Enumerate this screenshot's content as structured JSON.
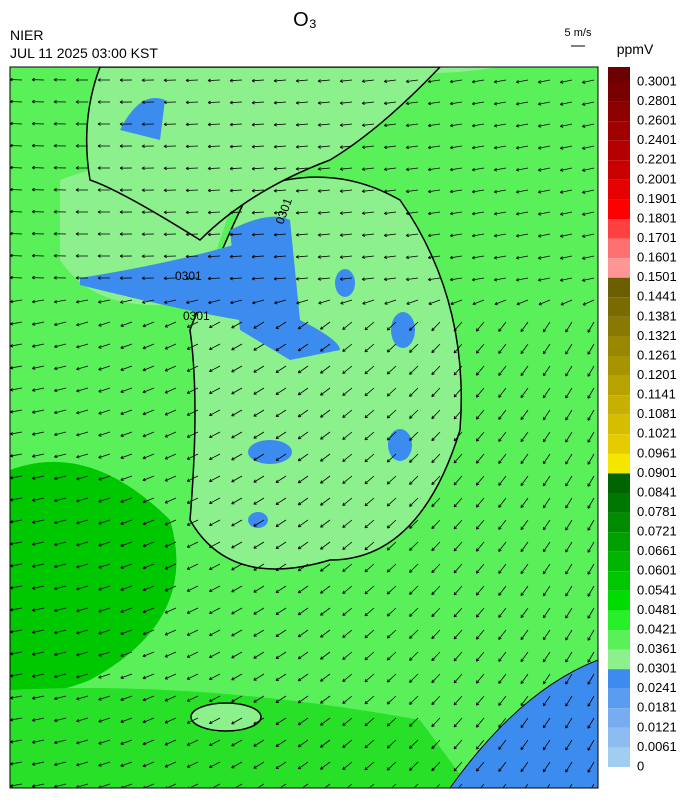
{
  "header": {
    "title": "O₃",
    "agency": "NIER",
    "datetime": "JUL 11 2025 03:00 KST",
    "wind_scale": "5 m/s"
  },
  "colorbar": {
    "unit": "ppmV",
    "labels": [
      0.3001,
      0.2801,
      0.2601,
      0.2401,
      0.2201,
      0.2001,
      0.1901,
      0.1801,
      0.1701,
      0.1601,
      0.1501,
      0.1441,
      0.1381,
      0.1321,
      0.1261,
      0.1201,
      0.1141,
      0.1081,
      0.1021,
      0.0961,
      0.0901,
      0.0841,
      0.0781,
      0.0721,
      0.0661,
      0.0601,
      0.0541,
      0.0481,
      0.0421,
      0.0361,
      0.0301,
      0.0241,
      0.0181,
      0.0121,
      0.0061,
      0
    ],
    "colors": [
      "#6b0000",
      "#780000",
      "#8c0000",
      "#a00000",
      "#b40000",
      "#c80000",
      "#e60000",
      "#ff0000",
      "#ff4040",
      "#ff7070",
      "#ff9696",
      "#6b5e00",
      "#7a6b00",
      "#897900",
      "#998700",
      "#a89400",
      "#b8a200",
      "#c7b000",
      "#d6bd00",
      "#e6cb00",
      "#f5e600",
      "#006400",
      "#007800",
      "#008c00",
      "#00a000",
      "#00b400",
      "#00c800",
      "#00dc00",
      "#28f028",
      "#5af05a",
      "#8cf08c",
      "#3c8cf0",
      "#5a9cf0",
      "#78acf0",
      "#8cbcf0",
      "#a0cdf0"
    ]
  },
  "map": {
    "contour_labels": [
      "0301",
      "0301",
      "0301"
    ]
  }
}
